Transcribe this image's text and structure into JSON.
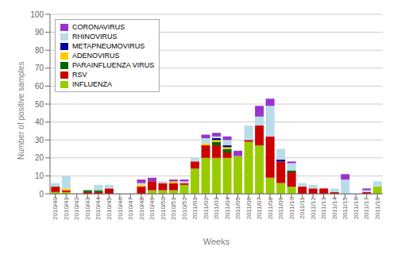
{
  "chart_data": {
    "type": "bar",
    "stacked": true,
    "xlabel": "Weeks",
    "ylabel": "Number of positive samples",
    "categories": [
      "2010/40",
      "2010/41",
      "2010/42",
      "2010/43",
      "2010/44",
      "2010/45",
      "2010/46",
      "2010/47",
      "2010/48",
      "2010/49",
      "2010/50",
      "2010/51",
      "2010/52",
      "2011/01",
      "2011/02",
      "2011/03",
      "2011/04",
      "2011/05",
      "2011/06",
      "2011/07",
      "2011/08",
      "2011/09",
      "2011/10",
      "2011/11",
      "2011/12",
      "2011/13",
      "2011/14",
      "2011/15",
      "2011/16",
      "2011/17",
      "2011/18"
    ],
    "series": [
      {
        "name": "INFLUENZA",
        "color": "#99cc00",
        "values": [
          1,
          1,
          0,
          0,
          0,
          0,
          0,
          0,
          0,
          2,
          2,
          2,
          5,
          14,
          20,
          20,
          20,
          21,
          29,
          27,
          9,
          6,
          4,
          0,
          0,
          0,
          0,
          0,
          0,
          0,
          4
        ]
      },
      {
        "name": "RSV",
        "color": "#cc0000",
        "values": [
          3,
          1,
          0,
          1,
          1,
          3,
          0,
          0,
          4,
          5,
          4,
          4,
          1,
          4,
          7,
          7,
          3,
          0,
          1,
          11,
          23,
          12,
          8,
          4,
          3,
          3,
          1,
          0,
          0,
          1,
          0
        ]
      },
      {
        "name": "PARAINFLUENZA VIRUS",
        "color": "#006600",
        "values": [
          0,
          0,
          0,
          1,
          1,
          0,
          0,
          0,
          0,
          0,
          0,
          0,
          0,
          0,
          0,
          2,
          2,
          0,
          0,
          0,
          0,
          0,
          1,
          0,
          0,
          0,
          0,
          0,
          0,
          0,
          0
        ]
      },
      {
        "name": "ADENOVIRUS",
        "color": "#ffcc00",
        "values": [
          0,
          1,
          0,
          0,
          0,
          0,
          0,
          0,
          1,
          0,
          0,
          1,
          0,
          0,
          1,
          1,
          1,
          0,
          0,
          0,
          0,
          0,
          0,
          0,
          0,
          0,
          0,
          0,
          0,
          0,
          0
        ]
      },
      {
        "name": "METAPNEUMOVIRUS",
        "color": "#000099",
        "values": [
          0,
          0,
          0,
          0,
          0,
          0,
          0,
          0,
          0,
          0,
          0,
          0,
          0,
          0,
          0,
          1,
          1,
          0,
          0,
          0,
          0,
          1,
          0,
          0,
          0,
          0,
          0,
          0,
          0,
          0,
          0
        ]
      },
      {
        "name": "RHINOVIRUS",
        "color": "#b8dde8",
        "values": [
          2,
          7,
          0,
          0,
          3,
          2,
          0,
          0,
          1,
          0,
          1,
          0,
          1,
          2,
          3,
          1,
          3,
          0,
          8,
          5,
          17,
          6,
          4,
          2,
          2,
          0,
          2,
          8,
          0,
          1,
          3
        ]
      },
      {
        "name": "CORONAVIRUS",
        "color": "#9933cc",
        "values": [
          0,
          0,
          0,
          0,
          0,
          0,
          0,
          0,
          2,
          2,
          0,
          1,
          1,
          0,
          2,
          2,
          2,
          3,
          0,
          6,
          4,
          0,
          1,
          0,
          0,
          0,
          0,
          3,
          0,
          1,
          0
        ]
      }
    ],
    "ylim": [
      0,
      100
    ],
    "yticks": [
      0,
      10,
      20,
      30,
      40,
      50,
      60,
      70,
      80,
      90,
      100
    ],
    "grid": true,
    "legend": "upper left"
  }
}
